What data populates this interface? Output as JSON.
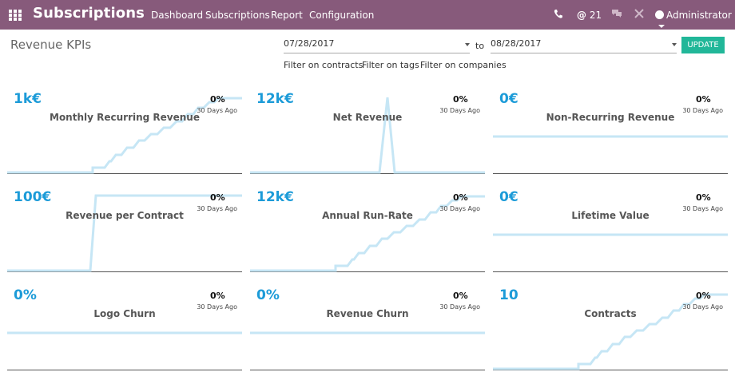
{
  "navbar": {
    "app_title": "Subscriptions",
    "menu": [
      "Dashboard",
      "Subscriptions",
      "Report",
      "Configuration"
    ],
    "message_count": "21",
    "user": "Administrator"
  },
  "controls": {
    "title": "Revenue KPIs",
    "date_from": "07/28/2017",
    "to_label": "to",
    "date_to": "08/28/2017",
    "update_label": "UPDATE",
    "filters": [
      "Filter on contracts",
      "Filter on tags",
      "Filter on companies"
    ]
  },
  "colors": {
    "navbar": "#875a7b",
    "accent_value": "#1c9bd8",
    "update_button": "#21b799",
    "sparkline": "#c6e6f5"
  },
  "cards": [
    {
      "value": "1k€",
      "label": "Monthly Recurring Revenue",
      "pct": "0%",
      "ago": "30 Days Ago",
      "shape": "steps"
    },
    {
      "value": "12k€",
      "label": "Net Revenue",
      "pct": "0%",
      "ago": "30 Days Ago",
      "shape": "spike"
    },
    {
      "value": "0€",
      "label": "Non-Recurring Revenue",
      "pct": "0%",
      "ago": "30 Days Ago",
      "shape": "flat"
    },
    {
      "value": "100€",
      "label": "Revenue per Contract",
      "pct": "0%",
      "ago": "30 Days Ago",
      "shape": "jump"
    },
    {
      "value": "12k€",
      "label": "Annual Run-Rate",
      "pct": "0%",
      "ago": "30 Days Ago",
      "shape": "steps"
    },
    {
      "value": "0€",
      "label": "Lifetime Value",
      "pct": "0%",
      "ago": "30 Days Ago",
      "shape": "flat"
    },
    {
      "value": "0%",
      "label": "Logo Churn",
      "pct": "0%",
      "ago": "30 Days Ago",
      "shape": "flat"
    },
    {
      "value": "0%",
      "label": "Revenue Churn",
      "pct": "0%",
      "ago": "30 Days Ago",
      "shape": "flat"
    },
    {
      "value": "10",
      "label": "Contracts",
      "pct": "0%",
      "ago": "30 Days Ago",
      "shape": "steps"
    }
  ]
}
